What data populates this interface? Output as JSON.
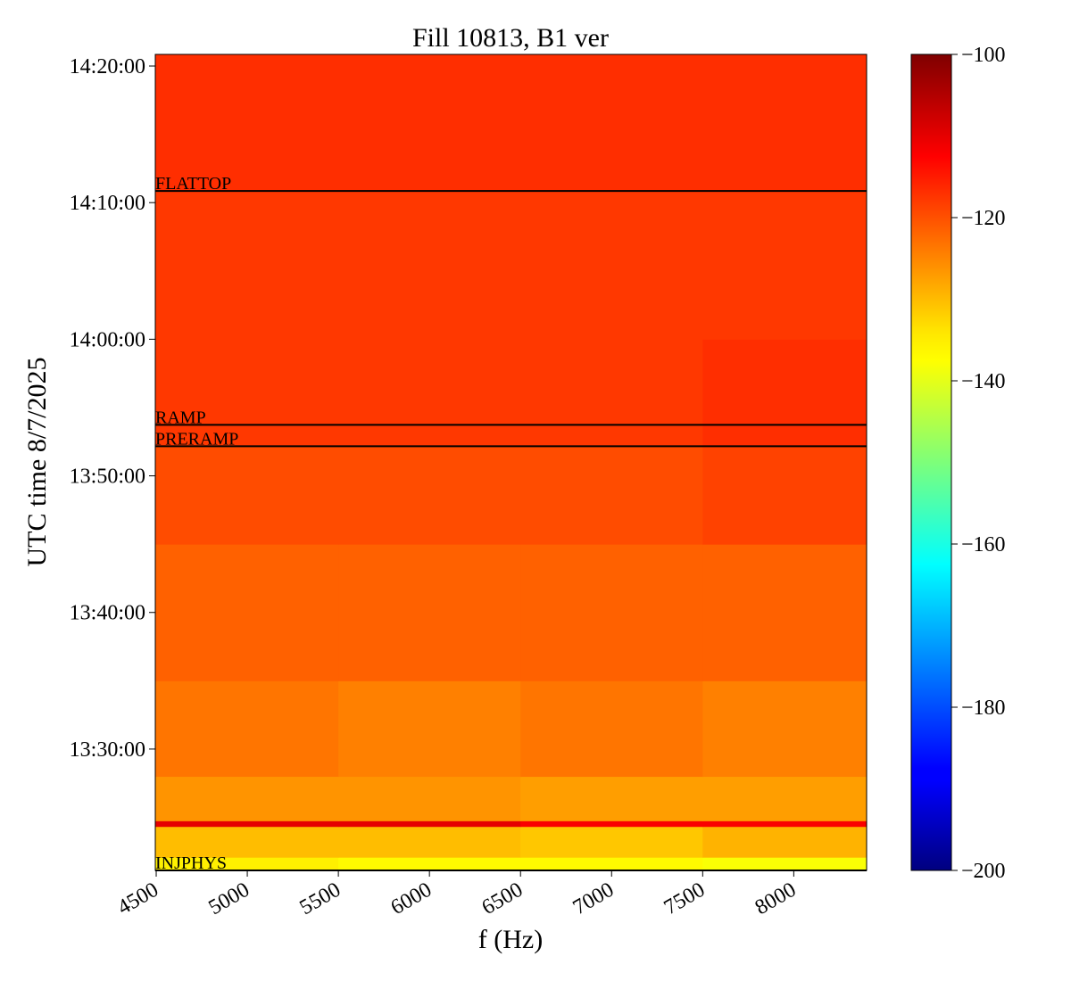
{
  "chart_data": {
    "type": "heatmap",
    "title": "Fill 10813, B1 ver",
    "x_label": "f (Hz)",
    "y_label": "UTC time 8/7/2025",
    "xlim": [
      4495,
      8400
    ],
    "xticks": [
      4500,
      5000,
      5500,
      6000,
      6500,
      7000,
      7500,
      8000
    ],
    "ylim": [
      "13:21:07",
      "14:20:51"
    ],
    "yticks": [
      "13:30:00",
      "13:40:00",
      "13:50:00",
      "14:00:00",
      "14:10:00",
      "14:20:00"
    ],
    "colormap": "jet",
    "clim": [
      -200,
      -100
    ],
    "cticks": [
      {
        "value": -100,
        "label": "−100"
      },
      {
        "value": -120,
        "label": "−120"
      },
      {
        "value": -140,
        "label": "−140"
      },
      {
        "value": -160,
        "label": "−160"
      },
      {
        "value": -180,
        "label": "−180"
      },
      {
        "value": -200,
        "label": "−200"
      }
    ],
    "heatmap": {
      "x_edges": [
        4495,
        5500,
        6500,
        7500,
        8400
      ],
      "y_edges": [
        "13:21:07",
        "13:22:05",
        "13:24:20",
        "13:24:45",
        "13:28:00",
        "13:35:00",
        "13:45:00",
        "13:52:10",
        "14:00:00",
        "14:10:51",
        "14:20:51"
      ],
      "values": [
        [
          -136,
          -137,
          -137,
          -138
        ],
        [
          -131,
          -131,
          -132,
          -130
        ],
        [
          -110,
          -110,
          -112,
          -112
        ],
        [
          -127,
          -127,
          -128,
          -128
        ],
        [
          -124,
          -125,
          -124,
          -125
        ],
        [
          -122,
          -122,
          -122,
          -122
        ],
        [
          -120,
          -120,
          -120,
          -119
        ],
        [
          -118,
          -118,
          -118,
          -117
        ],
        [
          -118,
          -118,
          -118,
          -118
        ],
        [
          -117,
          -117,
          -117,
          -117
        ]
      ]
    },
    "phases": [
      {
        "label": "FLATTOP",
        "time": "14:10:51"
      },
      {
        "label": "RAMP",
        "time": "13:53:44"
      },
      {
        "label": "PRERAMP",
        "time": "13:52:10"
      },
      {
        "label": "INJPHYS",
        "time": "13:21:07"
      }
    ]
  }
}
